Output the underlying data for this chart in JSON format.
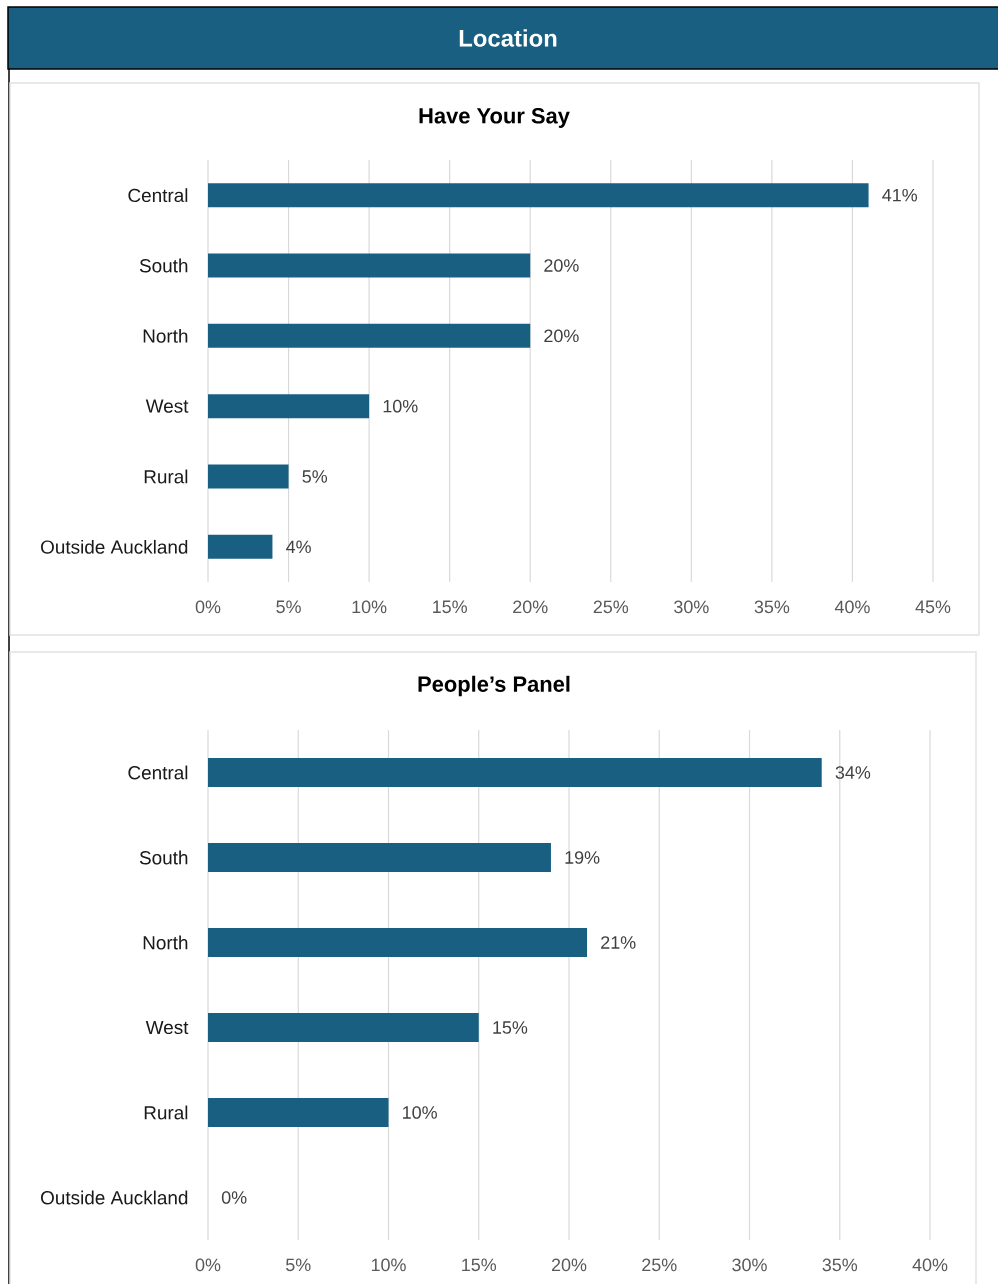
{
  "chart_data": [
    {
      "type": "bar",
      "orientation": "horizontal",
      "title": "Have Your Say",
      "annotations": [
        "Location"
      ],
      "categories": [
        "Central",
        "South",
        "North",
        "West",
        "Rural",
        "Outside Auckland"
      ],
      "values": [
        41,
        20,
        20,
        10,
        5,
        4
      ],
      "value_labels": [
        "41%",
        "20%",
        "20%",
        "10%",
        "5%",
        "4%"
      ],
      "color": "#185f82",
      "xlim": [
        0,
        45
      ],
      "xticks": [
        {
          "value": 0,
          "label": "0%"
        },
        {
          "value": 5,
          "label": "5%"
        },
        {
          "value": 10,
          "label": "10%"
        },
        {
          "value": 15,
          "label": "15%"
        },
        {
          "value": 20,
          "label": "20%"
        },
        {
          "value": 25,
          "label": "25%"
        },
        {
          "value": 30,
          "label": "30%"
        },
        {
          "value": 35,
          "label": "35%"
        },
        {
          "value": 40,
          "label": "40%"
        },
        {
          "value": 45,
          "label": "45%"
        }
      ],
      "grid": "x"
    },
    {
      "type": "bar",
      "orientation": "horizontal",
      "title": "People’s Panel",
      "categories": [
        "Central",
        "South",
        "North",
        "West",
        "Rural",
        "Outside Auckland"
      ],
      "values": [
        34,
        19,
        21,
        15,
        10,
        0
      ],
      "value_labels": [
        "34%",
        "19%",
        "21%",
        "15%",
        "10%",
        "0%"
      ],
      "color": "#185f82",
      "xlim": [
        0,
        40
      ],
      "xticks": [
        {
          "value": 0,
          "label": "0%"
        },
        {
          "value": 5,
          "label": "5%"
        },
        {
          "value": 10,
          "label": "10%"
        },
        {
          "value": 15,
          "label": "15%"
        },
        {
          "value": 20,
          "label": "20%"
        },
        {
          "value": 25,
          "label": "25%"
        },
        {
          "value": 30,
          "label": "30%"
        },
        {
          "value": 35,
          "label": "35%"
        },
        {
          "value": 40,
          "label": "40%"
        }
      ],
      "grid": "x"
    }
  ]
}
